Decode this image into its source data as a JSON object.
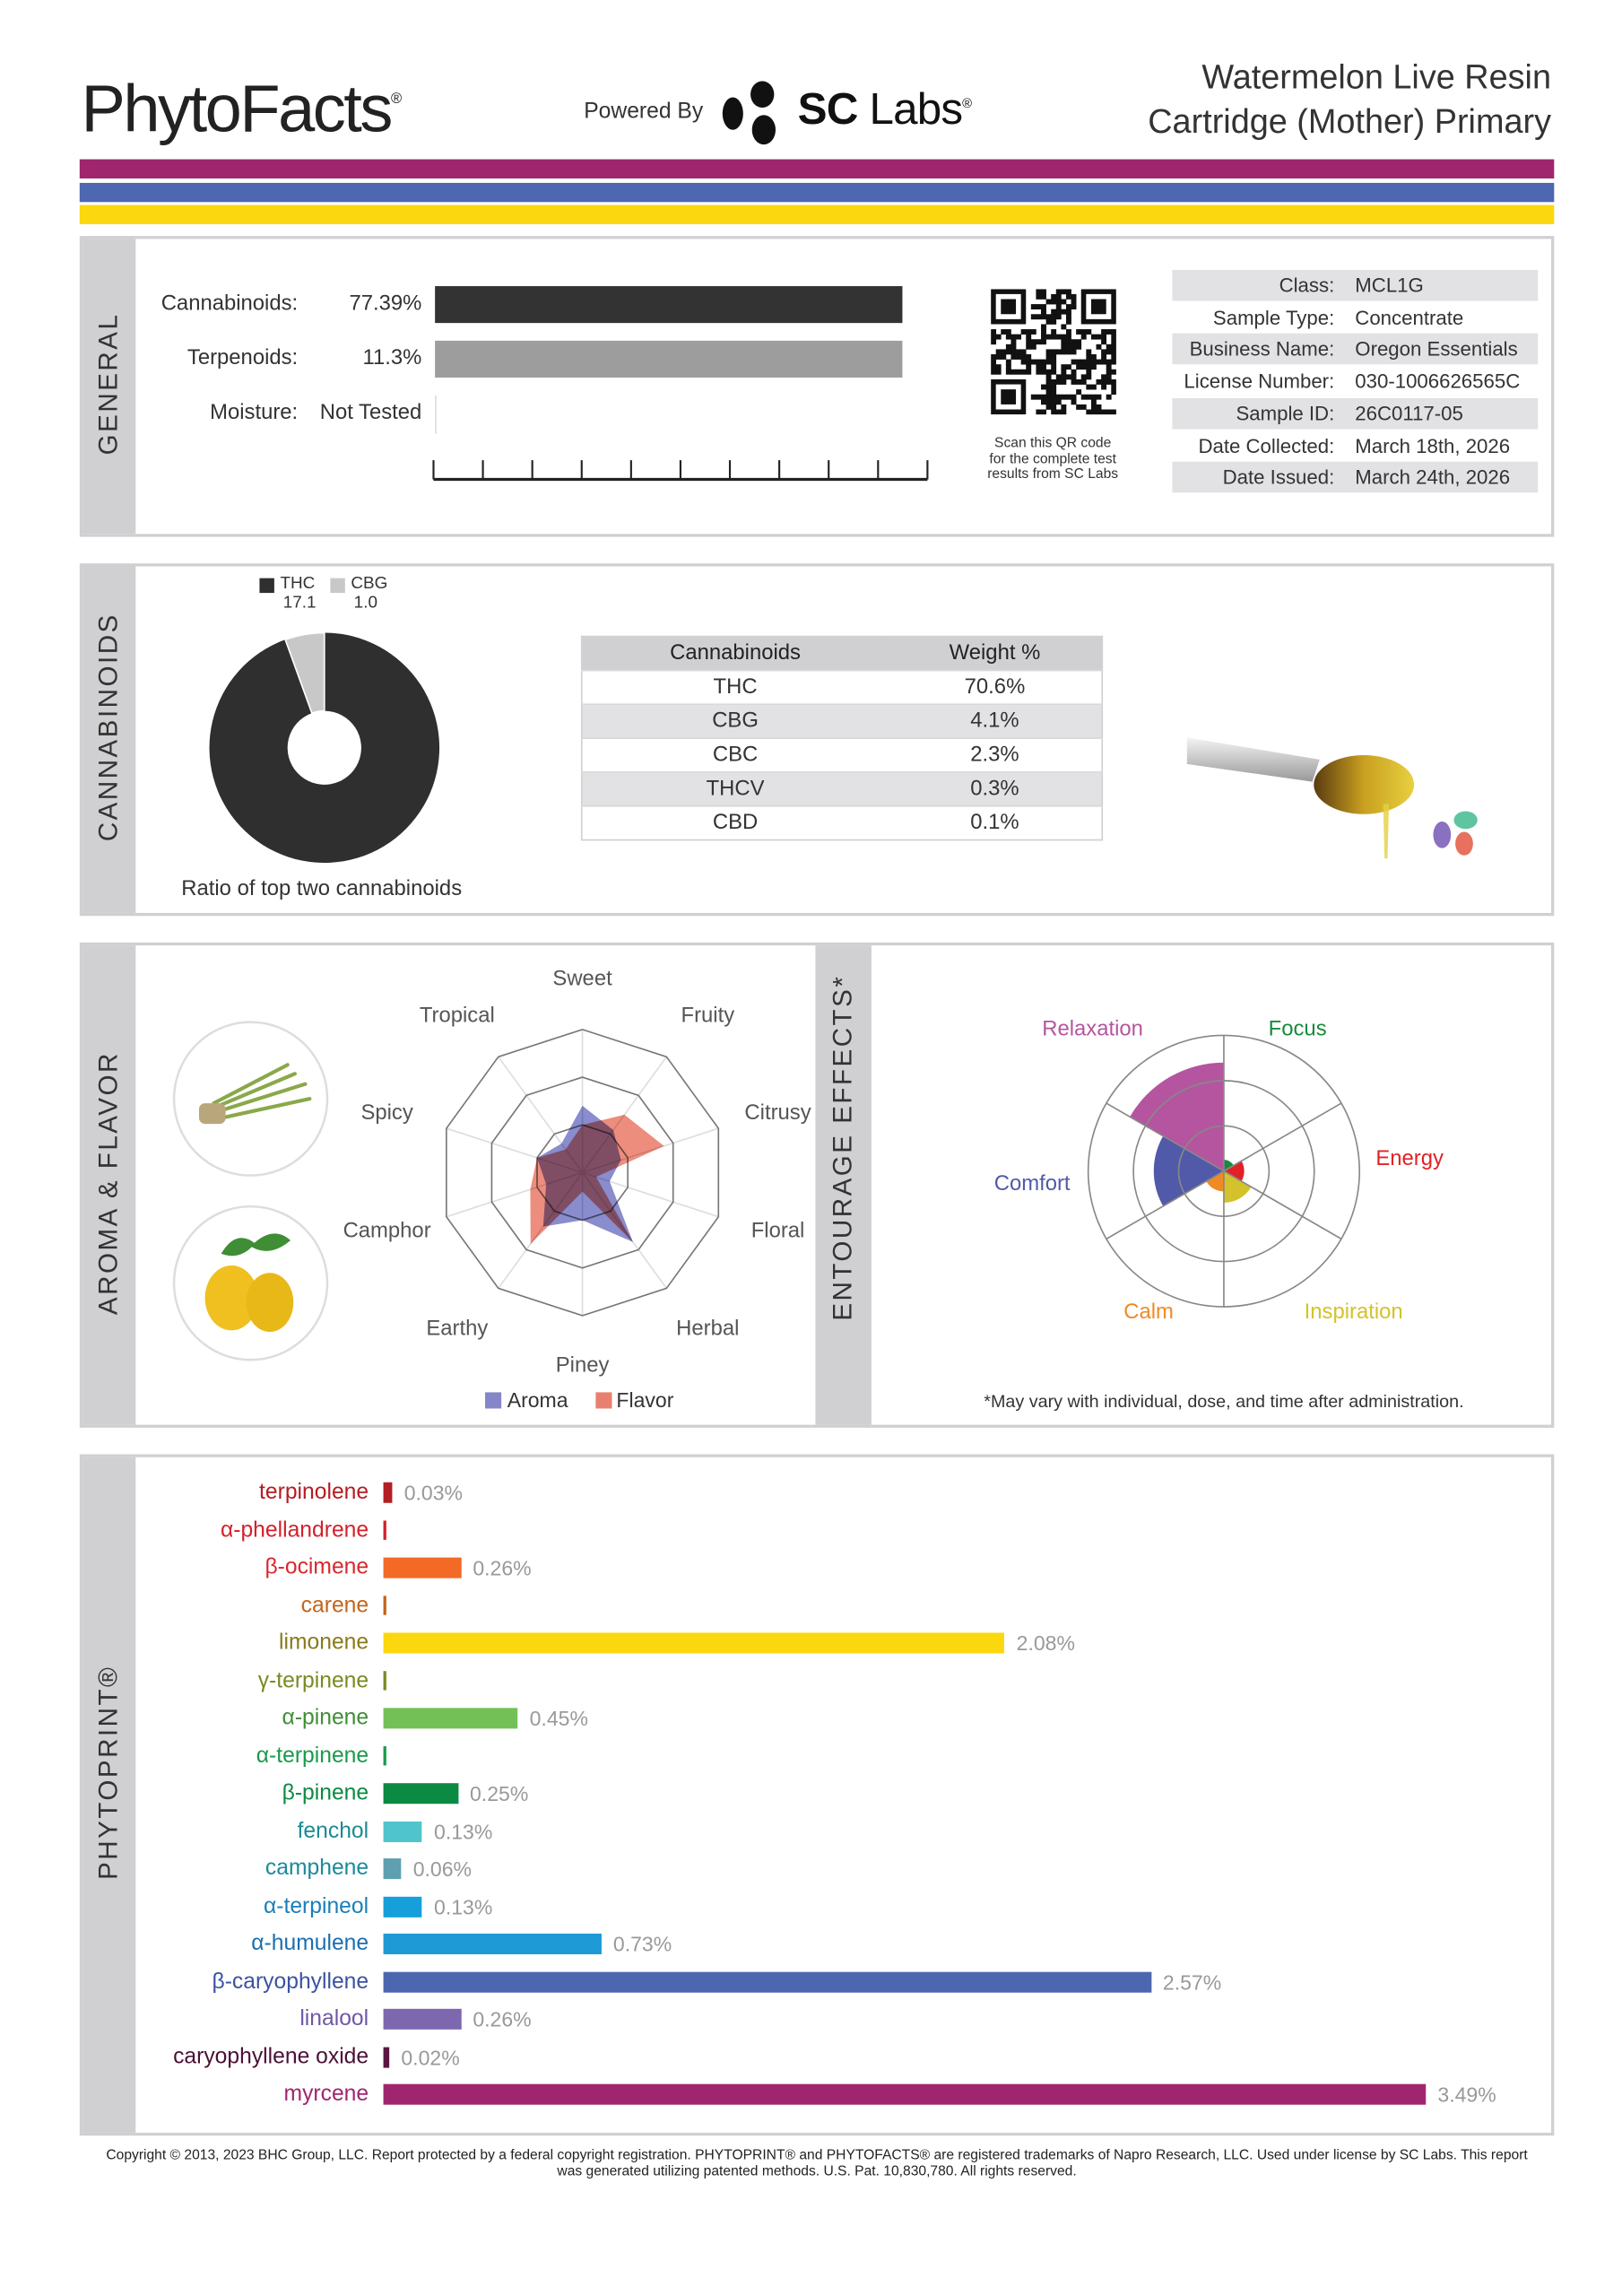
{
  "header": {
    "logo": "PhytoFacts",
    "logo_mark": "®",
    "powered_by": "Powered By",
    "lab_name_bold": "SC",
    "lab_name_rest": " Labs",
    "lab_mark": "®",
    "title_line1": "Watermelon Live Resin",
    "title_line2": "Cartridge (Mother) Primary"
  },
  "colors": {
    "purple": "#a0256f",
    "blue": "#4d67b0",
    "yellow": "#fbd70f",
    "panel": "#d0d0d2"
  },
  "general": {
    "section_label": "GENERAL",
    "cannabinoids_label": "Cannabinoids:",
    "cannabinoids_value": "77.39%",
    "cannabinoids_pct": 77.39,
    "terpenoids_label": "Terpenoids:",
    "terpenoids_value": "11.3%",
    "terpenoids_pct": 11.3,
    "moisture_label": "Moisture:",
    "moisture_value": "Not Tested",
    "qr_caption_1": "Scan this QR code",
    "qr_caption_2": "for the complete test",
    "qr_caption_3": "results from SC Labs",
    "info": [
      {
        "k": "Class:",
        "v": "MCL1G"
      },
      {
        "k": "Sample Type:",
        "v": "Concentrate"
      },
      {
        "k": "Business Name:",
        "v": "Oregon Essentials"
      },
      {
        "k": "License Number:",
        "v": "030-1006626565C"
      },
      {
        "k": "Sample ID:",
        "v": "26C0117-05"
      },
      {
        "k": "Date Collected:",
        "v": "March 18th, 2026"
      },
      {
        "k": "Date Issued:",
        "v": "March 24th, 2026"
      }
    ]
  },
  "cannabinoids": {
    "section_label": "CANNABINOIDS",
    "ratio_caption": "Ratio of top two cannabinoids",
    "ratio": [
      {
        "name": "THC",
        "value": "17.1",
        "num": 17.1,
        "color": "#2f2f2f"
      },
      {
        "name": "CBG",
        "value": "1.0",
        "num": 1.0,
        "color": "#c8c8c8"
      }
    ],
    "table_headers": [
      "Cannabinoids",
      "Weight %"
    ],
    "rows": [
      {
        "name": "THC",
        "weight": "70.6%"
      },
      {
        "name": "CBG",
        "weight": "4.1%"
      },
      {
        "name": "CBC",
        "weight": "2.3%"
      },
      {
        "name": "THCV",
        "weight": "0.3%"
      },
      {
        "name": "CBD",
        "weight": "0.1%"
      }
    ]
  },
  "aroma": {
    "section_label": "AROMA & FLAVOR",
    "legend_aroma": "Aroma",
    "legend_flavor": "Flavor"
  },
  "entourage": {
    "section_label": "ENTOURAGE EFFECTS*",
    "footnote": "*May vary with individual, dose, and time after administration."
  },
  "phytoprint": {
    "section_label": "PHYTOPRINT®"
  },
  "footer": {
    "line1": "Copyright © 2013, 2023 BHC Group, LLC. Report protected by a federal copyright registration. PHYTOPRINT® and PHYTOFACTS® are registered trademarks of Napro Research, LLC. Used under license by SC Labs. This report",
    "line2": "was generated utilizing patented methods. U.S. Pat. 10,830,780. All rights reserved."
  },
  "chart_data": [
    {
      "type": "radar",
      "title": "Aroma & Flavor",
      "axes": [
        "Sweet",
        "Fruity",
        "Citrusy",
        "Floral",
        "Herbal",
        "Piney",
        "Earthy",
        "Camphor",
        "Spicy",
        "Tropical"
      ],
      "range": [
        0,
        3
      ],
      "series": [
        {
          "name": "Aroma",
          "color": "#6b6fc0",
          "values": [
            1.4,
            1.1,
            0.85,
            0.6,
            1.8,
            1.0,
            1.4,
            0.8,
            1.0,
            0.75
          ]
        },
        {
          "name": "Flavor",
          "color": "#e8705e",
          "values": [
            1.0,
            1.5,
            1.8,
            0.3,
            1.8,
            0.4,
            1.85,
            1.15,
            1.0,
            0.6
          ]
        }
      ]
    },
    {
      "type": "polar-area",
      "title": "Entourage Effects",
      "range": [
        0,
        3
      ],
      "categories": [
        {
          "name": "Focus",
          "value": 0.25,
          "color": "#1a8a3e"
        },
        {
          "name": "Energy",
          "value": 0.45,
          "color": "#e02226"
        },
        {
          "name": "Inspiration",
          "value": 0.7,
          "color": "#d4c22a"
        },
        {
          "name": "Calm",
          "value": 0.45,
          "color": "#f08a24"
        },
        {
          "name": "Comfort",
          "value": 1.55,
          "color": "#515aa8"
        },
        {
          "name": "Relaxation",
          "value": 2.4,
          "color": "#b5559f"
        }
      ]
    },
    {
      "type": "bar",
      "orientation": "horizontal",
      "title": "PHYTOPRINT®",
      "unit": "%",
      "xlim": [
        0,
        3.49
      ],
      "items": [
        {
          "name": "terpinolene",
          "value": 0.03,
          "label": "0.03%",
          "color": "#b21f24",
          "text": "#b51c22"
        },
        {
          "name": "α-phellandrene",
          "value": 0,
          "label": "",
          "color": "#e0232b",
          "text": "#d4202a"
        },
        {
          "name": "β-ocimene",
          "value": 0.26,
          "label": "0.26%",
          "color": "#f26a25",
          "text": "#d9272e"
        },
        {
          "name": "carene",
          "value": 0,
          "label": "",
          "color": "#c4641c",
          "text": "#c4641c"
        },
        {
          "name": "limonene",
          "value": 2.08,
          "label": "2.08%",
          "color": "#fbd70f",
          "text": "#8a7a1a"
        },
        {
          "name": "γ-terpinene",
          "value": 0,
          "label": "",
          "color": "#a8b634",
          "text": "#7a8a20"
        },
        {
          "name": "α-pinene",
          "value": 0.45,
          "label": "0.45%",
          "color": "#73c156",
          "text": "#3f8e35"
        },
        {
          "name": "α-terpinene",
          "value": 0,
          "label": "",
          "color": "#1a9a4a",
          "text": "#1a9a4a"
        },
        {
          "name": "β-pinene",
          "value": 0.25,
          "label": "0.25%",
          "color": "#0a8a43",
          "text": "#0a8a43"
        },
        {
          "name": "fenchol",
          "value": 0.13,
          "label": "0.13%",
          "color": "#4fc4cc",
          "text": "#1b8a93"
        },
        {
          "name": "camphene",
          "value": 0.06,
          "label": "0.06%",
          "color": "#5ea0b0",
          "text": "#1a8a9b"
        },
        {
          "name": "α-terpineol",
          "value": 0.13,
          "label": "0.13%",
          "color": "#16a0db",
          "text": "#1a7fb8"
        },
        {
          "name": "α-humulene",
          "value": 0.73,
          "label": "0.73%",
          "color": "#1e9ad6",
          "text": "#1a6fb0"
        },
        {
          "name": "β-caryophyllene",
          "value": 2.57,
          "label": "2.57%",
          "color": "#4c67b0",
          "text": "#3c52a0"
        },
        {
          "name": "linalool",
          "value": 0.26,
          "label": "0.26%",
          "color": "#7d68b0",
          "text": "#7057a6"
        },
        {
          "name": "caryophyllene oxide",
          "value": 0.02,
          "label": "0.02%",
          "color": "#5b1640",
          "text": "#4a1035"
        },
        {
          "name": "myrcene",
          "value": 3.49,
          "label": "3.49%",
          "color": "#a0256f",
          "text": "#a0256f"
        }
      ]
    }
  ]
}
